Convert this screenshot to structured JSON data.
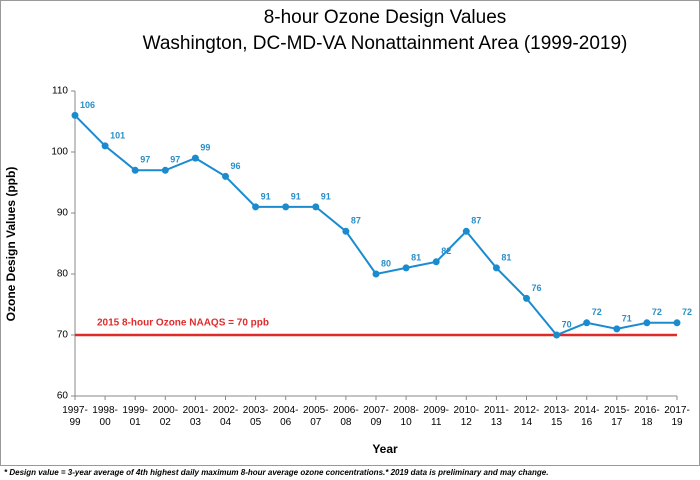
{
  "chart_data": {
    "type": "line",
    "title": "8-hour Ozone Design Values",
    "subtitle": "Washington, DC-MD-VA Nonattainment Area (1999-2019)",
    "x_label": "Year",
    "y_label": "Ozone Design Values (ppb)",
    "categories": [
      "1997-99",
      "1998-00",
      "1999-01",
      "2000-02",
      "2001-03",
      "2002-04",
      "2003-05",
      "2004-06",
      "2005-07",
      "2006-08",
      "2007-09",
      "2008-10",
      "2009-11",
      "2010-12",
      "2011-13",
      "2012-14",
      "2013-15",
      "2014-16",
      "2015-17",
      "2016-18",
      "2017-19"
    ],
    "series": [
      {
        "name": "Ozone Design Value",
        "color": "#1b8bd0",
        "values": [
          106,
          101,
          97,
          97,
          99,
          96,
          91,
          91,
          91,
          87,
          80,
          81,
          82,
          87,
          81,
          76,
          70,
          72,
          71,
          72,
          72
        ]
      }
    ],
    "ylim": [
      60,
      110
    ],
    "yticks": [
      60,
      70,
      80,
      90,
      100,
      110
    ],
    "grid": false,
    "reference_line": {
      "value": 70,
      "label": "2015 8-hour Ozone NAAQS = 70 ppb",
      "color": "#e02b2b"
    },
    "footnote": "* Design value = 3-year average of 4th highest daily maximum 8-hour average ozone concentrations.* 2019 data is preliminary and may change."
  }
}
